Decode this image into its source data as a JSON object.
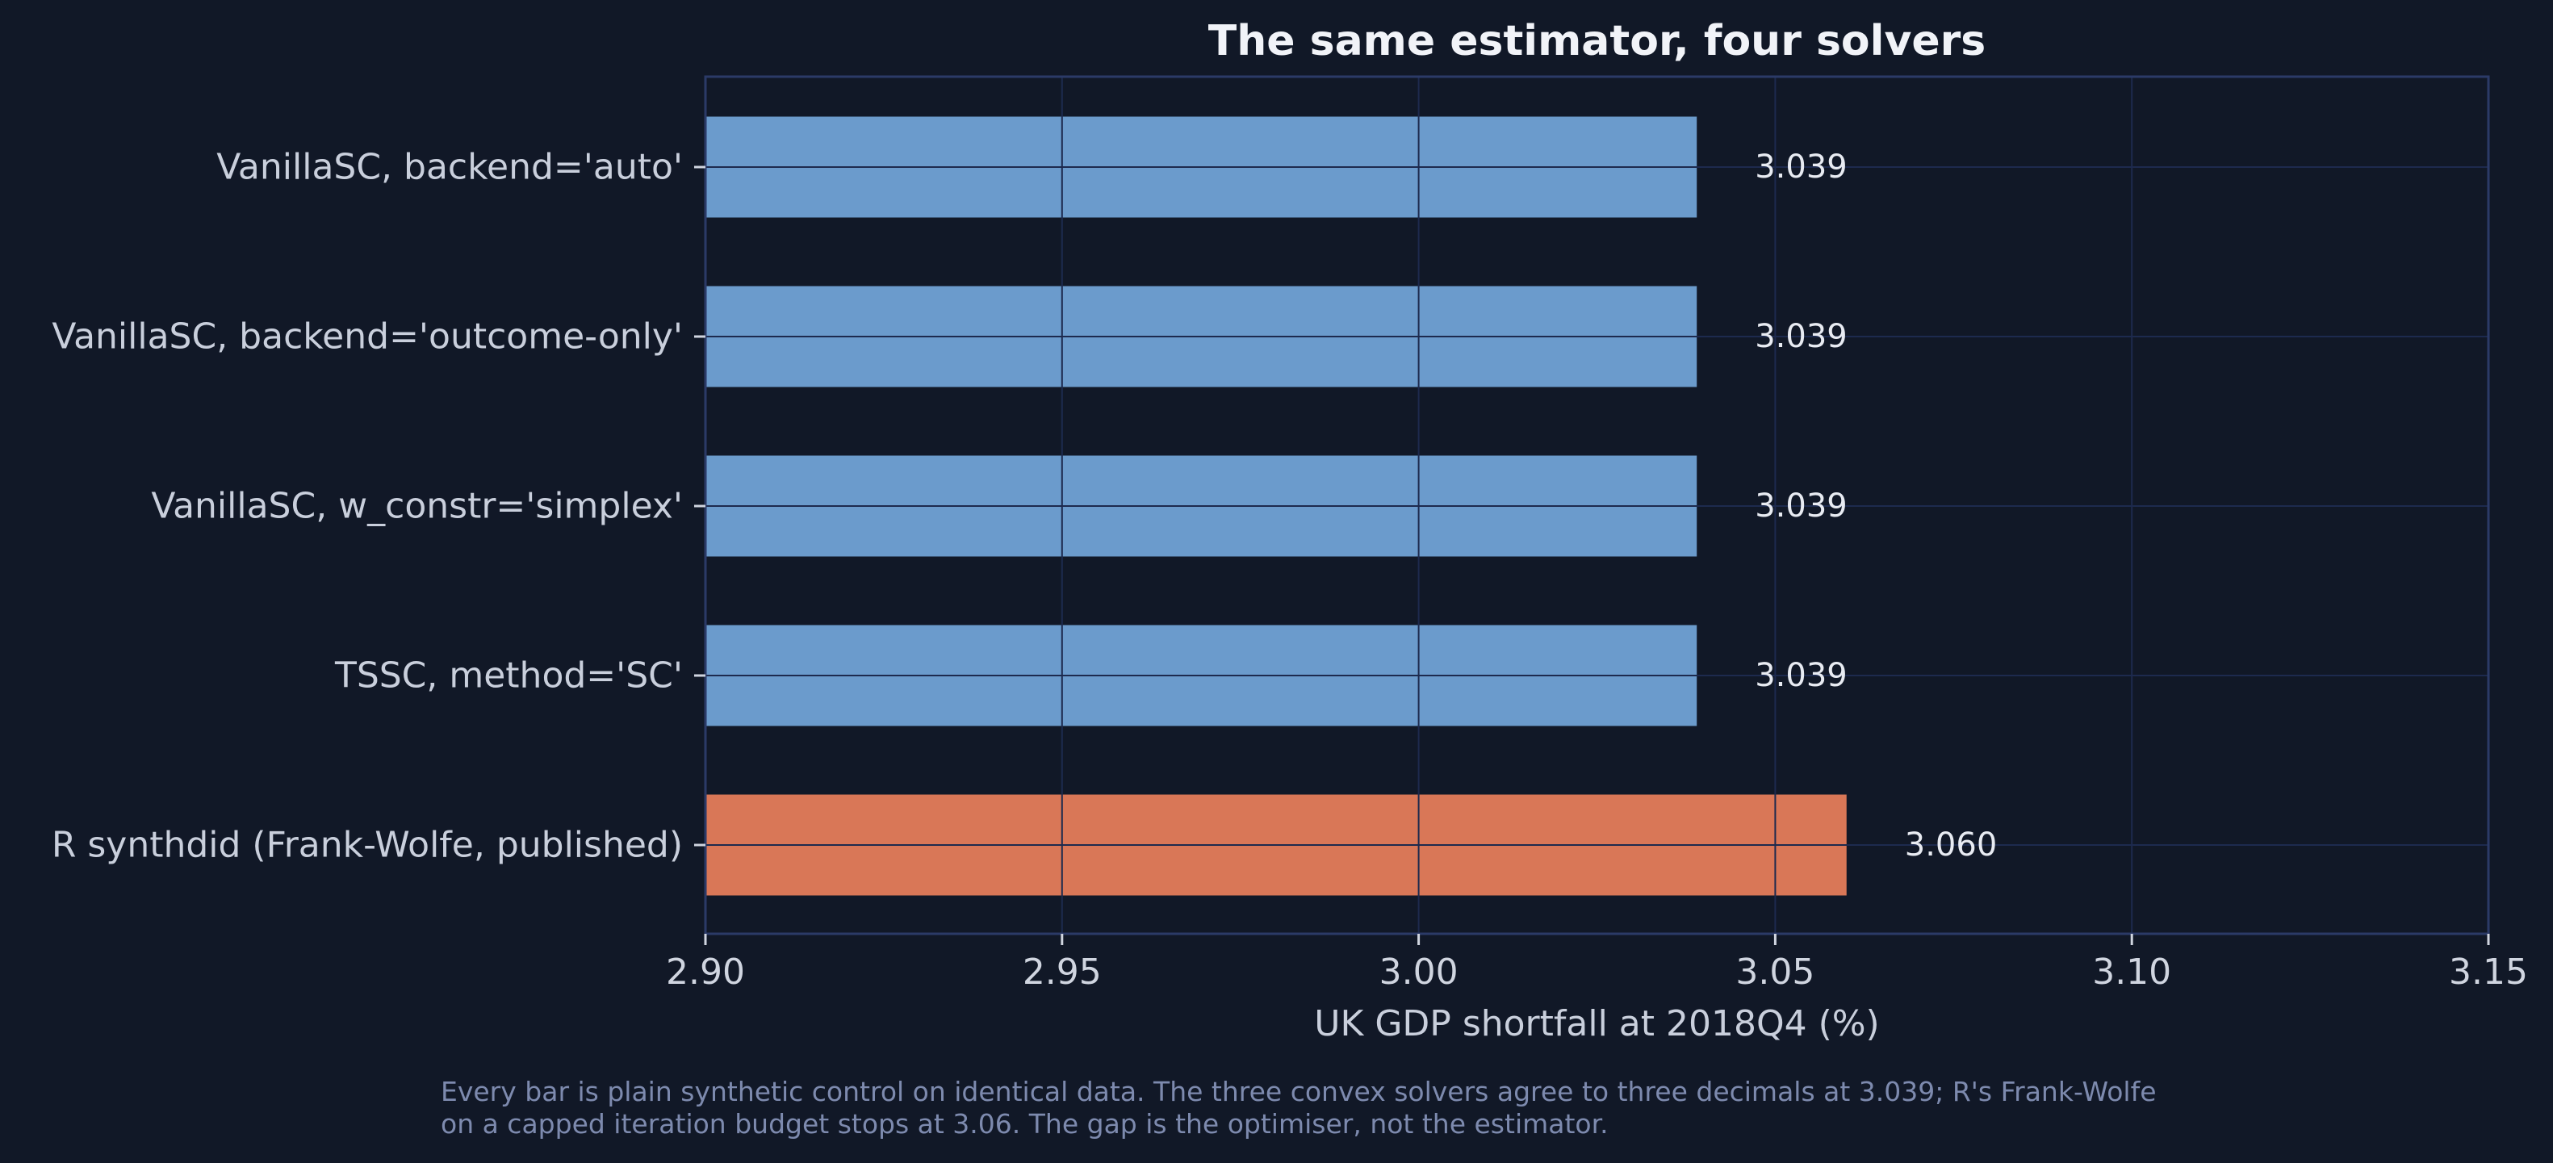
{
  "colors": {
    "background": "#111827",
    "plot_border": "#2b3a67",
    "grid": "#1d2a4e",
    "primary_bar": "#6b9bcc",
    "highlight_bar": "#d97757",
    "title": "#f1f3f8",
    "label": "#c9cfdc",
    "tick": "#d0d5e0",
    "value_label": "#e8ebf2",
    "caption": "#7d8aae"
  },
  "chart_data": {
    "type": "bar",
    "orientation": "horizontal",
    "title": "The same estimator, four solvers",
    "xlabel": "UK GDP shortfall at 2018Q4 (%)",
    "ylabel": "",
    "categories": [
      "VanillaSC, backend='auto'",
      "VanillaSC, backend='outcome-only'",
      "VanillaSC, w_constr='simplex'",
      "TSSC, method='SC'",
      "R synthdid (Frank-Wolfe, published)"
    ],
    "values": [
      3.039,
      3.039,
      3.039,
      3.039,
      3.06
    ],
    "value_labels": [
      "3.039",
      "3.039",
      "3.039",
      "3.039",
      "3.060"
    ],
    "highlight": [
      false,
      false,
      false,
      false,
      true
    ],
    "xlim": [
      2.9,
      3.15
    ],
    "xticks": [
      2.9,
      2.95,
      3.0,
      3.05,
      3.1,
      3.15
    ],
    "xtick_labels": [
      "2.90",
      "2.95",
      "3.00",
      "3.05",
      "3.10",
      "3.15"
    ],
    "grid": true
  },
  "caption": {
    "line1": "Every bar is plain synthetic control on identical data. The three convex solvers agree to three decimals at 3.039; R's Frank-Wolfe",
    "line2": "on a capped iteration budget stops at 3.06. The gap is the optimiser, not the estimator."
  }
}
